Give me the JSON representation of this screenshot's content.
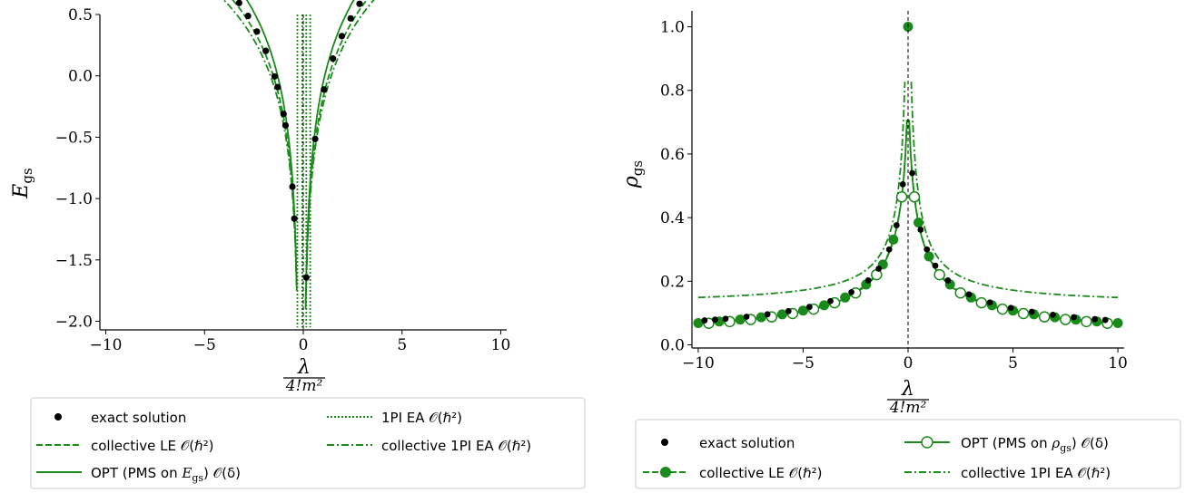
{
  "colors": {
    "green": "#1a8a1a",
    "black": "#000000",
    "legend_border": "#cccccc"
  },
  "chart_data": [
    {
      "type": "line",
      "xlabel_num": "λ",
      "xlabel_den": "4!m²",
      "ylabel_main": "E",
      "ylabel_sub": "gs",
      "xlim": [
        -10.3,
        10.3
      ],
      "ylim": [
        -2.07,
        0.5
      ],
      "xticks": [
        -10,
        -5,
        0,
        5,
        10
      ],
      "xtick_labels": [
        "−10",
        "−5",
        "0",
        "5",
        "10"
      ],
      "yticks": [
        -2.0,
        -1.5,
        -1.0,
        -0.5,
        0.0,
        0.5
      ],
      "ytick_labels": [
        "−2.0",
        "−1.5",
        "−1.0",
        "−0.5",
        "0.0",
        "0.5"
      ],
      "series": [
        {
          "name": "exact solution",
          "style": "dots"
        },
        {
          "name": "collective LE 𝒪(ℏ²)",
          "style": "dashed"
        },
        {
          "name": "OPT (PMS on E_gs) 𝒪(δ)",
          "style": "solid"
        },
        {
          "name": "1PI EA 𝒪(ℏ²)",
          "style": "dotted"
        },
        {
          "name": "collective 1PI EA 𝒪(ℏ²)",
          "style": "dashdot"
        }
      ],
      "legend": {
        "col1": [
          "exact solution",
          "collective LE 𝒪(ℏ²)",
          "OPT (PMS on E_gs) 𝒪(δ)"
        ],
        "col2": [
          "1PI EA 𝒪(ℏ²)",
          "collective 1PI EA 𝒪(ℏ²)"
        ],
        "opt_prefix": "OPT (PMS on ",
        "opt_var": "E",
        "opt_sub": "gs",
        "opt_suffix": ") 𝒪(δ)"
      }
    },
    {
      "type": "line",
      "xlabel_num": "λ",
      "xlabel_den": "4!m²",
      "ylabel_main": "ρ",
      "ylabel_sub": "gs",
      "xlim": [
        -10.3,
        10.3
      ],
      "ylim": [
        -0.01,
        1.05
      ],
      "xticks": [
        -10,
        -5,
        0,
        5,
        10
      ],
      "xtick_labels": [
        "−10",
        "−5",
        "0",
        "5",
        "10"
      ],
      "yticks": [
        0.0,
        0.2,
        0.4,
        0.6,
        0.8,
        1.0
      ],
      "ytick_labels": [
        "0.0",
        "0.2",
        "0.4",
        "0.6",
        "0.8",
        "1.0"
      ],
      "series": [
        {
          "name": "exact solution",
          "style": "dots"
        },
        {
          "name": "collective LE 𝒪(ℏ²)",
          "style": "dashed-filled-markers"
        },
        {
          "name": "OPT (PMS on ρ_gs) 𝒪(δ)",
          "style": "solid-open-markers"
        },
        {
          "name": "collective 1PI EA 𝒪(ℏ²)",
          "style": "dashdot"
        }
      ],
      "legend": {
        "col1": [
          "exact solution",
          "collective LE 𝒪(ℏ²)"
        ],
        "col2": [
          "OPT (PMS on ρ_gs) 𝒪(δ)",
          "collective 1PI EA 𝒪(ℏ²)"
        ],
        "opt_prefix": "OPT (PMS on ",
        "opt_var": "ρ",
        "opt_sub": "gs",
        "opt_suffix": ") 𝒪(δ)"
      }
    }
  ]
}
